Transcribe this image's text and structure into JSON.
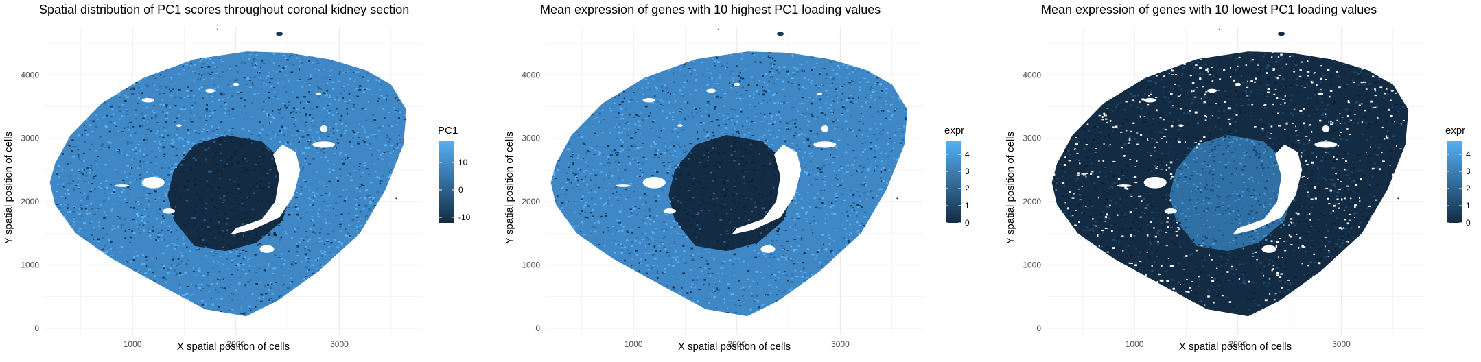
{
  "figure_title": "",
  "colors": {
    "low": "#132B43",
    "high": "#56B1F7",
    "grid": "#ebebeb",
    "background": "#ffffff"
  },
  "chart_data": [
    {
      "type": "heatmap",
      "title": "Spatial distribution of PC1 scores throughout coronal kidney section",
      "xlabel": "X spatial position of cells",
      "ylabel": "Y spatial position of cells",
      "x_ticks": [
        1000,
        2000,
        3000
      ],
      "y_ticks": [
        0,
        1000,
        2000,
        3000,
        4000
      ],
      "xlim": [
        150,
        3800
      ],
      "ylim": [
        -100,
        4750
      ],
      "grid": true,
      "legend": {
        "title": "PC1",
        "position": "right",
        "ticks": [
          -10,
          0,
          10
        ],
        "range": [
          -12,
          18
        ]
      },
      "pattern": "cortex-high"
    },
    {
      "type": "heatmap",
      "title": "Mean expression of genes with 10 highest PC1 loading values",
      "xlabel": "X spatial position of cells",
      "ylabel": "Y spatial position of cells",
      "x_ticks": [
        1000,
        2000,
        3000
      ],
      "y_ticks": [
        0,
        1000,
        2000,
        3000,
        4000
      ],
      "xlim": [
        150,
        3800
      ],
      "ylim": [
        -100,
        4750
      ],
      "grid": true,
      "legend": {
        "title": "expr",
        "position": "right",
        "ticks": [
          0,
          1,
          2,
          3,
          4
        ],
        "range": [
          0,
          4.8
        ]
      },
      "pattern": "cortex-high"
    },
    {
      "type": "heatmap",
      "title": "Mean expression of genes with 10 lowest PC1 loading values",
      "xlabel": "X spatial position of cells",
      "ylabel": "Y spatial position of cells",
      "x_ticks": [
        1000,
        2000,
        3000
      ],
      "y_ticks": [
        0,
        1000,
        2000,
        3000,
        4000
      ],
      "xlim": [
        150,
        3800
      ],
      "ylim": [
        -100,
        4750
      ],
      "grid": true,
      "legend": {
        "title": "expr",
        "position": "right",
        "ticks": [
          0,
          1,
          2,
          3,
          4
        ],
        "range": [
          0,
          4.8
        ]
      },
      "pattern": "medulla-high"
    }
  ]
}
